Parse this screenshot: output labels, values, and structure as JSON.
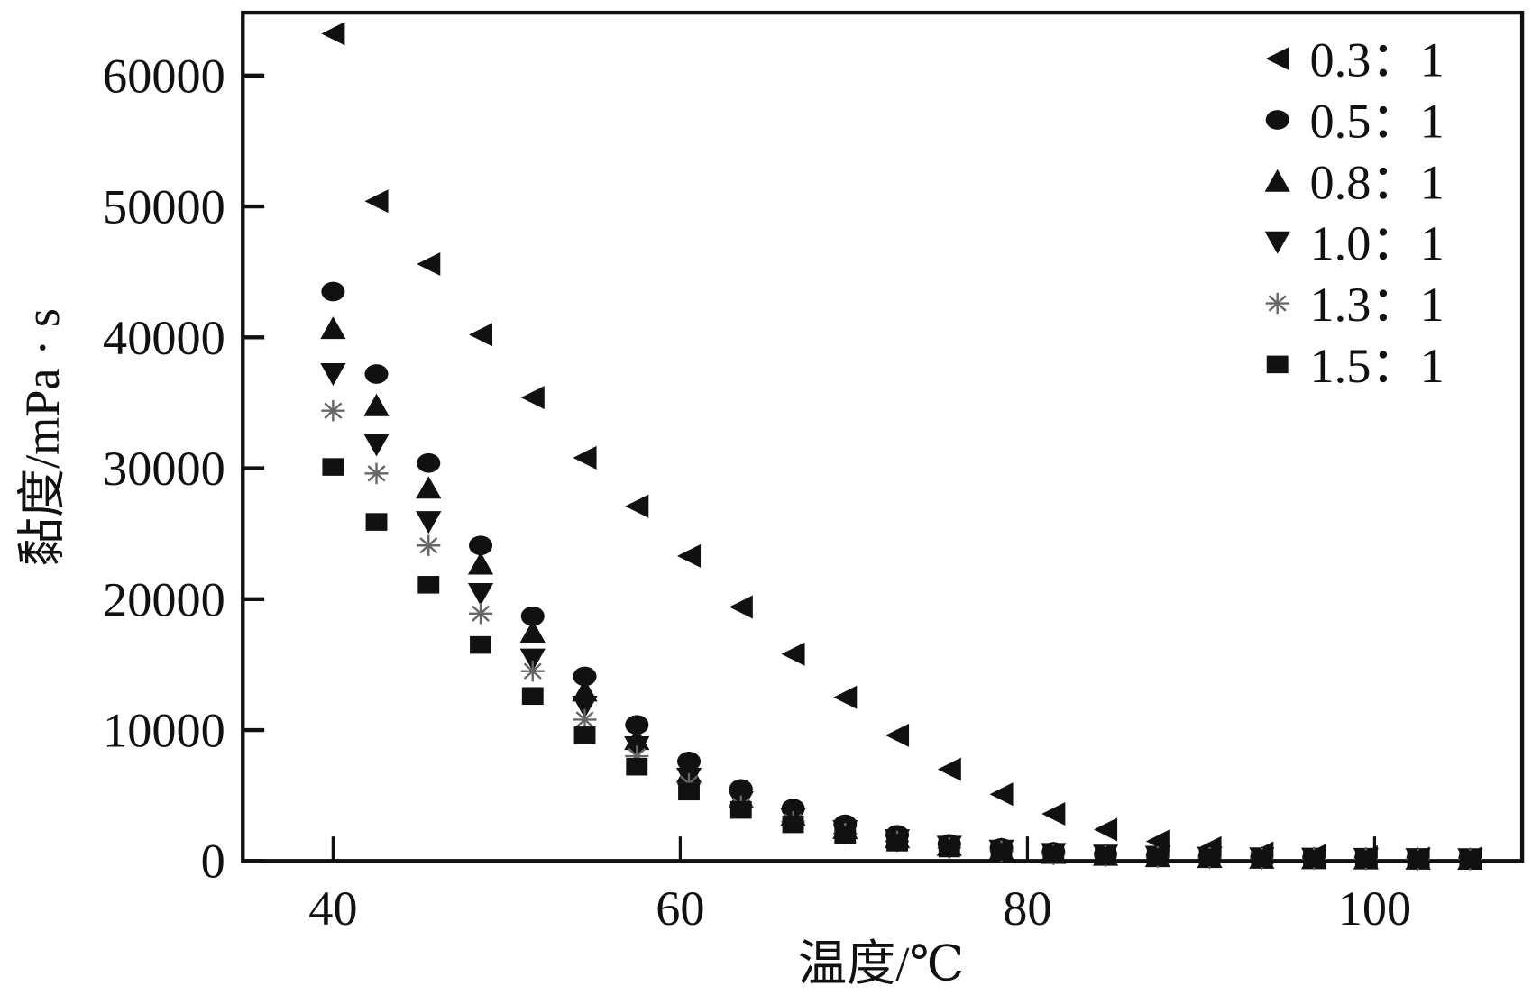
{
  "chart_data": {
    "type": "scatter",
    "title": "",
    "xlabel": "温度/℃",
    "ylabel": "黏度/mPa · s",
    "xlim": [
      34.8,
      108.5
    ],
    "ylim": [
      0,
      64800
    ],
    "xticks": [
      40,
      60,
      80,
      100
    ],
    "yticks": [
      0,
      10000,
      20000,
      30000,
      40000,
      50000,
      60000
    ],
    "grid": false,
    "legend_position": "top-right",
    "x": [
      40,
      42.5,
      45.5,
      48.5,
      51.5,
      54.5,
      57.5,
      60.5,
      63.5,
      66.5,
      69.5,
      72.5,
      75.5,
      78.5,
      81.5,
      84.5,
      87.5,
      90.5,
      93.5,
      96.5,
      99.5,
      102.5,
      105.5
    ],
    "series": [
      {
        "name": "0.3：1",
        "marker": "triangle-left",
        "color": "#111111",
        "values": [
          63200,
          50400,
          45600,
          40200,
          35400,
          30800,
          27100,
          23300,
          19400,
          15800,
          12500,
          9600,
          7000,
          5100,
          3600,
          2400,
          1500,
          1000,
          600,
          400,
          300,
          200,
          200
        ]
      },
      {
        "name": "0.5：1",
        "marker": "circle",
        "color": "#111111",
        "values": [
          43500,
          37200,
          30400,
          24100,
          18700,
          14100,
          10400,
          7600,
          5500,
          4000,
          2800,
          2000,
          1300,
          1000,
          700,
          500,
          400,
          300,
          250,
          220,
          200,
          180,
          160
        ]
      },
      {
        "name": "0.8：1",
        "marker": "triangle-up",
        "color": "#111111",
        "values": [
          40700,
          34800,
          28500,
          22700,
          17500,
          13000,
          9300,
          6800,
          4900,
          3500,
          2500,
          1800,
          1200,
          900,
          600,
          450,
          350,
          280,
          230,
          200,
          180,
          160,
          150
        ]
      },
      {
        "name": "1.0：1",
        "marker": "triangle-down",
        "color": "#111111",
        "values": [
          37200,
          31800,
          25900,
          20400,
          15400,
          11800,
          8700,
          6300,
          4500,
          3200,
          2300,
          1600,
          1100,
          800,
          550,
          420,
          330,
          260,
          210,
          190,
          170,
          150,
          140
        ]
      },
      {
        "name": "1.3：1",
        "marker": "star",
        "color": "#666666",
        "values": [
          34400,
          29600,
          24100,
          18900,
          14500,
          10800,
          8000,
          5900,
          4200,
          3000,
          2100,
          1500,
          1000,
          750,
          520,
          400,
          310,
          250,
          200,
          180,
          160,
          140,
          130
        ]
      },
      {
        "name": "1.5：1",
        "marker": "square",
        "color": "#111111",
        "values": [
          30100,
          25900,
          21100,
          16500,
          12600,
          9600,
          7200,
          5300,
          3900,
          2800,
          2000,
          1400,
          950,
          700,
          500,
          380,
          300,
          240,
          200,
          170,
          150,
          130,
          120
        ]
      }
    ]
  }
}
